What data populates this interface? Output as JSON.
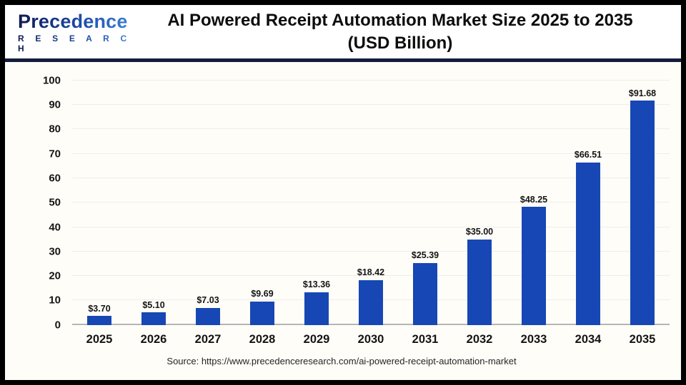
{
  "header": {
    "logo": {
      "name": "Precedence",
      "subname": "R E S E A R C H"
    },
    "title_line1": "AI Powered Receipt Automation Market Size 2025 to 2035",
    "title_line2": "(USD Billion)"
  },
  "footer": {
    "source": "Source: https://www.precedenceresearch.com/ai-powered-receipt-automation-market"
  },
  "colors": {
    "bar": "#1747b4",
    "divider": "#141d3e",
    "grid": "#ededec",
    "axis_line": "#b5b5b5",
    "logo_dark": "#0d1a55",
    "logo_light": "#3f87de",
    "title_text": "#0d0d0d"
  },
  "chart_data": {
    "type": "bar",
    "title": "AI Powered Receipt Automation Market Size 2025 to 2035 (USD Billion)",
    "categories": [
      "2025",
      "2026",
      "2027",
      "2028",
      "2029",
      "2030",
      "2031",
      "2032",
      "2033",
      "2034",
      "2035"
    ],
    "values": [
      3.7,
      5.1,
      7.03,
      9.69,
      13.36,
      18.42,
      25.39,
      35.0,
      48.25,
      66.51,
      91.68
    ],
    "bar_labels": [
      "$3.70",
      "$5.10",
      "$7.03",
      "$9.69",
      "$13.36",
      "$18.42",
      "$25.39",
      "$35.00",
      "$48.25",
      "$66.51",
      "$91.68"
    ],
    "xlabel": "",
    "ylabel": "",
    "ylim": [
      0,
      100
    ],
    "ytick_step": 10,
    "grid": true,
    "legend": null
  }
}
